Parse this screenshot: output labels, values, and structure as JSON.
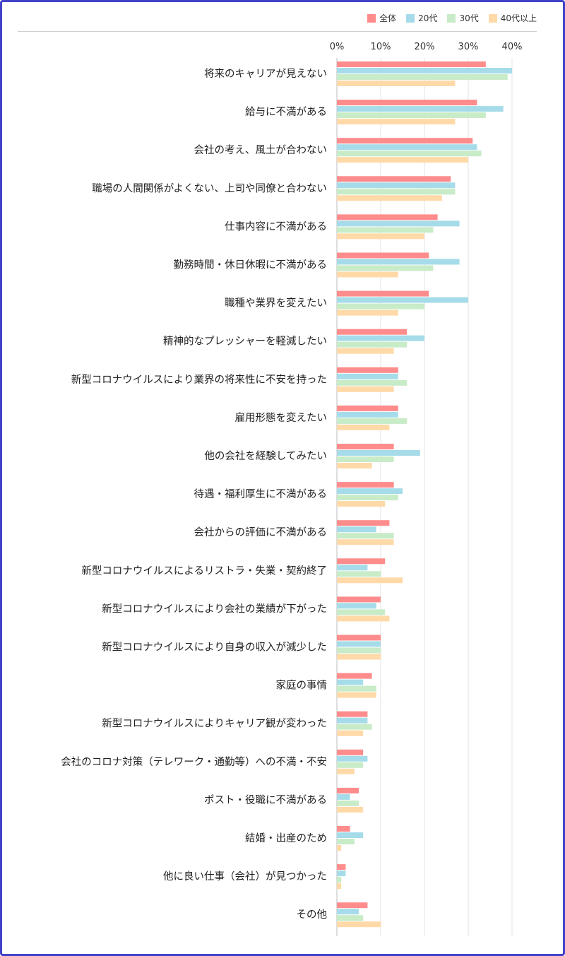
{
  "chart_data": {
    "type": "bar",
    "orientation": "horizontal",
    "title": "",
    "xlabel": "",
    "ylabel": "",
    "xlim": [
      0,
      40
    ],
    "ticks": [
      "0%",
      "10%",
      "20%",
      "30%",
      "40%"
    ],
    "grid": true,
    "legend_position": "top-right",
    "categories": [
      "将来のキャリアが見えない",
      "給与に不満がある",
      "会社の考え、風土が合わない",
      "職場の人間関係がよくない、上司や同僚と合わない",
      "仕事内容に不満がある",
      "勤務時間・休日休暇に不満がある",
      "職種や業界を変えたい",
      "精神的なプレッシャーを軽減したい",
      "新型コロナウイルスにより業界の将来性に不安を持った",
      "雇用形態を変えたい",
      "他の会社を経験してみたい",
      "待遇・福利厚生に不満がある",
      "会社からの評価に不満がある",
      "新型コロナウイルスによるリストラ・失業・契約終了",
      "新型コロナウイルスにより会社の業績が下がった",
      "新型コロナウイルスにより自身の収入が減少した",
      "家庭の事情",
      "新型コロナウイルスによりキャリア観が変わった",
      "会社のコロナ対策（テレワーク・通勤等）への不満・不安",
      "ポスト・役職に不満がある",
      "結婚・出産のため",
      "他に良い仕事（会社）が見つかった",
      "その他"
    ],
    "series": [
      {
        "name": "全体",
        "color": "#ff8c8c",
        "values": [
          34,
          32,
          31,
          26,
          23,
          21,
          21,
          16,
          14,
          14,
          13,
          13,
          12,
          11,
          10,
          10,
          8,
          7,
          6,
          5,
          3,
          2,
          7
        ]
      },
      {
        "name": "20代",
        "color": "#a6dcea",
        "values": [
          40,
          38,
          32,
          27,
          28,
          28,
          30,
          20,
          14,
          14,
          19,
          15,
          9,
          7,
          9,
          10,
          6,
          7,
          7,
          3,
          6,
          2,
          5
        ]
      },
      {
        "name": "30代",
        "color": "#c8ebc8",
        "values": [
          39,
          34,
          33,
          27,
          22,
          22,
          20,
          16,
          16,
          16,
          13,
          14,
          13,
          10,
          11,
          10,
          9,
          8,
          6,
          5,
          4,
          1,
          6
        ]
      },
      {
        "name": "40代以上",
        "color": "#ffd9a8",
        "values": [
          27,
          27,
          30,
          24,
          20,
          14,
          14,
          13,
          13,
          12,
          8,
          11,
          13,
          15,
          12,
          10,
          9,
          6,
          4,
          6,
          1,
          1,
          10
        ]
      }
    ]
  }
}
